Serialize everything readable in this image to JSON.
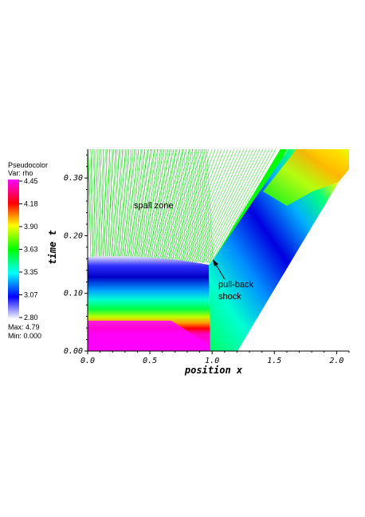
{
  "legend": {
    "title": "Pseudocolor",
    "var_label": "Var: rho",
    "ticks": [
      "4.45",
      "4.18",
      "3.90",
      "3.63",
      "3.35",
      "3.07",
      "2.80"
    ],
    "max_label": "Max:  4.79",
    "min_label": "Min:  0.000",
    "colors": [
      "#ff00ff",
      "#ff0000",
      "#ffff00",
      "#00ff00",
      "#00ffff",
      "#0000ff",
      "#ffffff"
    ]
  },
  "annotations": {
    "spall": "spall zone",
    "pullback_line1": "pull-back",
    "pullback_line2": "shock"
  },
  "chart_data": {
    "type": "heatmap",
    "title": "",
    "xlabel": "position x",
    "ylabel": "time t",
    "xlim": [
      0.0,
      2.1
    ],
    "ylim": [
      0.0,
      0.35
    ],
    "x_ticks": [
      "0.0",
      "0.5",
      "1.0",
      "1.5",
      "2.0"
    ],
    "y_ticks": [
      "0.00",
      "0.10",
      "0.20",
      "0.30"
    ],
    "variable": "rho",
    "color_range": [
      2.8,
      4.45
    ],
    "data_max": 4.79,
    "data_min": 0.0
  }
}
